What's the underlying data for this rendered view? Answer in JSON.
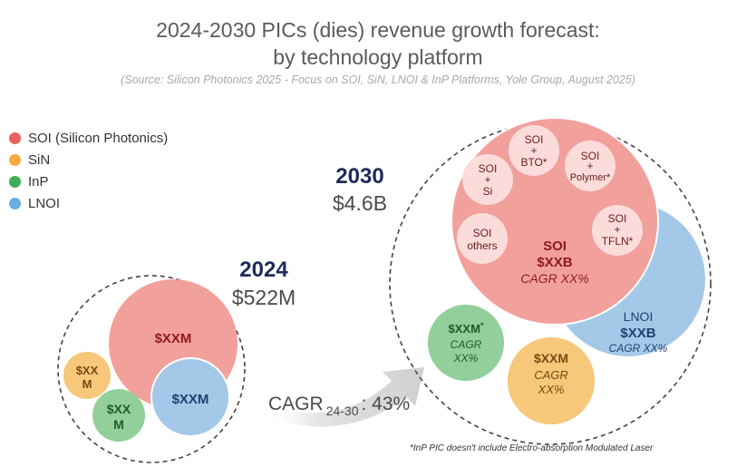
{
  "title_line1": "2024-2030 PICs (dies) revenue growth forecast:",
  "title_line2": "by technology platform",
  "source": "(Source: Silicon Photonics 2025 - Focus on SOI, SiN, LNOI & InP Platforms, Yole Group, August 2025)",
  "legend": [
    {
      "label": "SOI (Silicon Photonics)",
      "color": "#e86060"
    },
    {
      "label": "SiN",
      "color": "#f5a941"
    },
    {
      "label": "InP",
      "color": "#3fae5c"
    },
    {
      "label": "LNOI",
      "color": "#6aaee0"
    }
  ],
  "y2024": {
    "year": "2024",
    "total": "$522M",
    "soi": "$XXM",
    "sin_line1": "$XX",
    "sin_line2": "M",
    "inp_line1": "$XX",
    "inp_line2": "M",
    "lnoi": "$XXM"
  },
  "cagr": {
    "prefix": "CAGR",
    "sub": "24-30",
    "value": ": 43%"
  },
  "y2030": {
    "year": "2030",
    "total": "$4.6B",
    "soi": {
      "name": "SOI",
      "value": "$XXB",
      "cagr": "CAGR XX%"
    },
    "lnoi": {
      "name": "LNOI",
      "value": "$XXB",
      "cagr": "CAGR XX%"
    },
    "inp": {
      "value": "$XXM",
      "star": "*",
      "cagr_line1": "CAGR",
      "cagr_line2": "XX%"
    },
    "sin": {
      "value": "$XXM",
      "cagr_line1": "CAGR",
      "cagr_line2": "XX%"
    },
    "sub_bubbles": {
      "soi_bto": {
        "line1": "SOI",
        "line2": "+",
        "line3": "BTO*"
      },
      "soi_si": {
        "line1": "SOI",
        "line2": "+",
        "line3": "Si"
      },
      "soi_polymer": {
        "line1": "SOI",
        "line2": "+",
        "line3": "Polymer*"
      },
      "soi_others": {
        "line1": "SOI",
        "line2": "others"
      },
      "soi_tfln": {
        "line1": "SOI",
        "line2": "+",
        "line3": "TFLN*"
      }
    }
  },
  "footnote": "*InP PIC doesn't include Electro-absorption Modulated Laser",
  "colors": {
    "soi": "#f2a09c",
    "lnoi": "#a4c8e8",
    "inp": "#92cf9b",
    "sin": "#f7c77a",
    "sub_bubble": "#fbdcda",
    "navy": "#1e2b5a",
    "darkred": "#8e1b1b",
    "darkgreen": "#1d5b2d",
    "darkorange": "#7a4a12",
    "darkblue": "#1f3f6e",
    "arrow": "#d9d9d9"
  }
}
